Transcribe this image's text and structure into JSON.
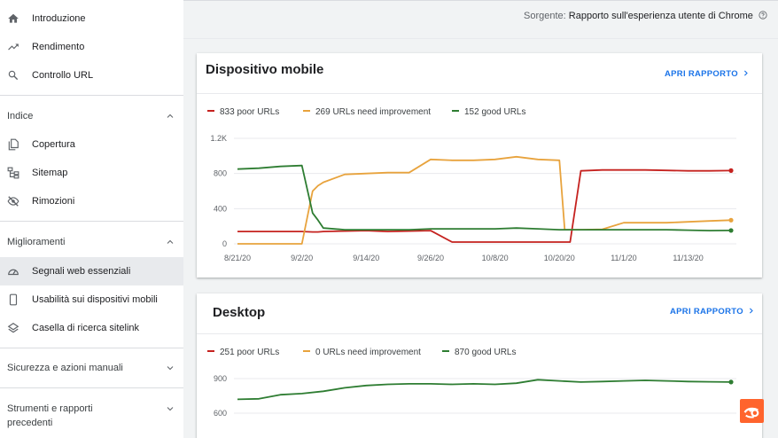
{
  "sidebar": {
    "items_top": [
      {
        "label": "Introduzione",
        "icon": "home-icon"
      },
      {
        "label": "Rendimento",
        "icon": "trending-up-icon"
      },
      {
        "label": "Controllo URL",
        "icon": "search-icon"
      }
    ],
    "sections": [
      {
        "title": "Indice",
        "items": [
          {
            "label": "Copertura",
            "icon": "file-copy-icon"
          },
          {
            "label": "Sitemap",
            "icon": "sitemap-icon"
          },
          {
            "label": "Rimozioni",
            "icon": "visibility-off-icon"
          }
        ]
      },
      {
        "title": "Miglioramenti",
        "items": [
          {
            "label": "Segnali web essenziali",
            "icon": "speed-icon"
          },
          {
            "label": "Usabilità sui dispositivi mobili",
            "icon": "smartphone-icon"
          },
          {
            "label": "Casella di ricerca sitelink",
            "icon": "layers-icon"
          }
        ]
      }
    ],
    "collapsed": [
      {
        "title": "Sicurezza e azioni manuali"
      },
      {
        "title_line1": "Strumenti e rapporti",
        "title_line2": "precedenti"
      }
    ]
  },
  "source": {
    "label": "Sorgente:",
    "value": "Rapporto sull'esperienza utente di Chrome"
  },
  "colors": {
    "poor": "#c5221f",
    "needs": "#e8a33d",
    "good": "#2e7d32",
    "link": "#1a73e8"
  },
  "mobile": {
    "title": "Dispositivo mobile",
    "link": "APRI RAPPORTO",
    "legend": [
      "833 poor URLs",
      "269 URLs need improvement",
      "152 good URLs"
    ]
  },
  "desktop": {
    "title": "Desktop",
    "link": "APRI RAPPORTO",
    "legend": [
      "251 poor URLs",
      "0 URLs need improvement",
      "870 good URLs"
    ]
  },
  "chart_data": [
    {
      "type": "line",
      "title": "Dispositivo mobile",
      "x_ticks": [
        "8/21/20",
        "9/2/20",
        "9/14/20",
        "9/26/20",
        "10/8/20",
        "10/20/20",
        "11/1/20",
        "11/13/20"
      ],
      "y_ticks": [
        "0",
        "400",
        "800",
        "1.2K"
      ],
      "ylim": [
        0,
        1200
      ],
      "grid": true,
      "x_days": [
        0,
        4,
        8,
        12,
        14,
        15,
        16,
        20,
        24,
        28,
        32,
        36,
        40,
        44,
        48,
        52,
        56,
        60,
        61,
        62,
        64,
        68,
        72,
        76,
        80,
        84,
        88,
        92
      ],
      "series": [
        {
          "name": "833 poor URLs",
          "values": [
            140,
            140,
            140,
            140,
            135,
            135,
            140,
            145,
            150,
            140,
            145,
            150,
            20,
            20,
            20,
            20,
            20,
            20,
            20,
            20,
            830,
            840,
            840,
            840,
            835,
            830,
            830,
            833
          ]
        },
        {
          "name": "269 URLs need improvement",
          "values": [
            0,
            0,
            0,
            0,
            600,
            660,
            700,
            790,
            800,
            810,
            810,
            960,
            950,
            950,
            960,
            990,
            960,
            950,
            160,
            160,
            160,
            165,
            240,
            240,
            240,
            250,
            260,
            269
          ]
        },
        {
          "name": "152 good URLs",
          "values": [
            850,
            860,
            880,
            890,
            350,
            270,
            180,
            160,
            160,
            160,
            160,
            170,
            170,
            170,
            170,
            180,
            170,
            160,
            160,
            160,
            160,
            160,
            160,
            160,
            160,
            155,
            150,
            152
          ]
        }
      ]
    },
    {
      "type": "line",
      "title": "Desktop",
      "y_ticks": [
        "600",
        "900"
      ],
      "grid": true,
      "x_days": [
        0,
        4,
        8,
        12,
        16,
        20,
        24,
        28,
        32,
        36,
        40,
        44,
        48,
        52,
        56,
        60,
        64,
        68,
        72,
        76,
        80,
        84,
        88,
        92
      ],
      "series": [
        {
          "name": "251 poor URLs",
          "values": []
        },
        {
          "name": "0 URLs need improvement",
          "values": []
        },
        {
          "name": "870 good URLs",
          "values": [
            720,
            725,
            760,
            770,
            790,
            820,
            840,
            850,
            855,
            855,
            850,
            855,
            850,
            860,
            890,
            880,
            870,
            875,
            880,
            885,
            880,
            875,
            872,
            870
          ]
        }
      ]
    }
  ]
}
